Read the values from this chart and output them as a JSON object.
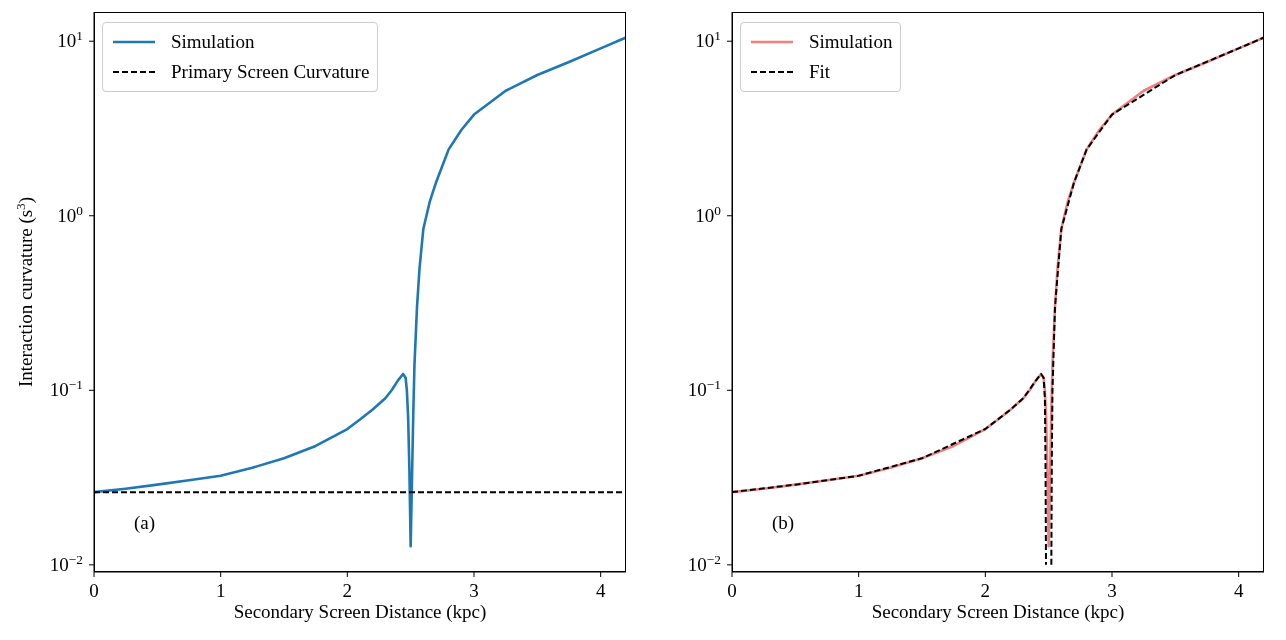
{
  "chart_data": [
    {
      "type": "line",
      "xlabel": "Secondary Screen Distance (kpc)",
      "ylabel": "Interaction curvature (s$^{3}$)",
      "log": "y",
      "xlim": [
        0,
        4.2
      ],
      "xticks": [
        0,
        1,
        2,
        3,
        4
      ],
      "ylim": [
        0.0091,
        14.7
      ],
      "yticks": [
        {
          "value": 0.01,
          "label": "10$^{−2}$"
        },
        {
          "value": 0.1,
          "label": "10$^{−1}$"
        },
        {
          "value": 1,
          "label": "10$^{0}$"
        },
        {
          "value": 10,
          "label": "10$^{1}$"
        }
      ],
      "legend": "top left",
      "annotations": [
        "(a)"
      ],
      "series": [
        {
          "name": "Simulation",
          "color": "#1f77b4",
          "line_style": "solid",
          "x": [
            0,
            0.25,
            0.5,
            0.75,
            1,
            1.25,
            1.5,
            1.75,
            2,
            2.1,
            2.2,
            2.3,
            2.35,
            2.4,
            2.44,
            2.46,
            2.47,
            2.48,
            2.49,
            2.5,
            2.51,
            2.52,
            2.53,
            2.55,
            2.57,
            2.6,
            2.65,
            2.7,
            2.8,
            2.9,
            3,
            3.25,
            3.5,
            3.75,
            4,
            4.2
          ],
          "values": [
            0.0261,
            0.0273,
            0.0288,
            0.0305,
            0.0324,
            0.036,
            0.0408,
            0.048,
            0.06,
            0.068,
            0.0776,
            0.09,
            0.1,
            0.114,
            0.124,
            0.118,
            0.1,
            0.07,
            0.035,
            0.0128,
            0.03,
            0.07,
            0.14,
            0.3,
            0.5,
            0.84,
            1.2,
            1.55,
            2.4,
            3.1,
            3.8,
            5.2,
            6.4,
            7.6,
            9.1,
            10.5
          ]
        },
        {
          "name": "Primary Screen Curvature",
          "color": "#000000",
          "line_style": "dashed",
          "x": [
            0,
            4.2
          ],
          "values": [
            0.0261,
            0.0261
          ]
        }
      ]
    },
    {
      "type": "line",
      "xlabel": "Secondary Screen Distance (kpc)",
      "log": "y",
      "xlim": [
        0,
        4.2
      ],
      "xticks": [
        0,
        1,
        2,
        3,
        4
      ],
      "ylim": [
        0.0091,
        14.7
      ],
      "yticks": [
        {
          "value": 0.01,
          "label": "10$^{−2}$"
        },
        {
          "value": 0.1,
          "label": "10$^{−1}$"
        },
        {
          "value": 1,
          "label": "10$^{0}$"
        },
        {
          "value": 10,
          "label": "10$^{1}$"
        }
      ],
      "legend": "top left",
      "annotations": [
        "(b)"
      ],
      "series": [
        {
          "name": "Simulation",
          "color": "#f08080",
          "line_style": "solid",
          "x": [
            0,
            0.25,
            0.5,
            0.75,
            1,
            1.25,
            1.5,
            1.75,
            2,
            2.1,
            2.2,
            2.3,
            2.35,
            2.4,
            2.44,
            2.46,
            2.47,
            2.48,
            2.49,
            2.5,
            2.51,
            2.52,
            2.53,
            2.55,
            2.57,
            2.6,
            2.65,
            2.7,
            2.8,
            2.9,
            3,
            3.25,
            3.5,
            3.75,
            4,
            4.2
          ],
          "values": [
            0.0261,
            0.0273,
            0.0288,
            0.0305,
            0.0324,
            0.036,
            0.0408,
            0.048,
            0.06,
            0.068,
            0.0776,
            0.09,
            0.1,
            0.114,
            0.124,
            0.118,
            0.1,
            0.07,
            0.035,
            0.0128,
            0.03,
            0.07,
            0.14,
            0.3,
            0.5,
            0.84,
            1.2,
            1.55,
            2.4,
            3.1,
            3.8,
            5.2,
            6.4,
            7.6,
            9.1,
            10.5
          ]
        },
        {
          "name": "Fit",
          "color": "#000000",
          "line_style": "dashed",
          "x": [
            0,
            0.5,
            1,
            1.5,
            2,
            2.2,
            2.3,
            2.4,
            2.44,
            2.46,
            2.47,
            2.475,
            2.479,
            2.5,
            2.521,
            2.525,
            2.53,
            2.55,
            2.6,
            2.7,
            2.8,
            3,
            3.5,
            4,
            4.2
          ],
          "values": [
            0.0261,
            0.0288,
            0.0324,
            0.0408,
            0.06,
            0.0776,
            0.09,
            0.114,
            0.124,
            0.118,
            0.09,
            0.04,
            0.01,
            null,
            0.01,
            0.04,
            0.1,
            0.3,
            0.84,
            1.55,
            2.4,
            3.8,
            6.4,
            9.1,
            10.5
          ]
        }
      ]
    }
  ]
}
